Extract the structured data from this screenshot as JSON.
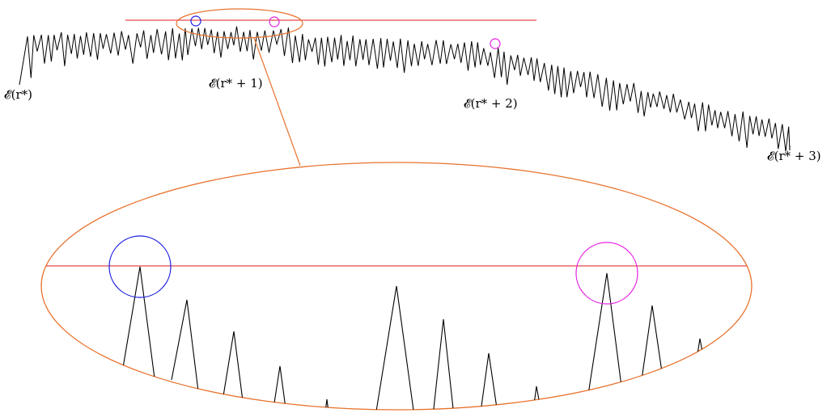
{
  "labels": {
    "e0": "𝓔(r*)",
    "e1": "𝓔(r* + 1)",
    "e2": "𝓔(r* + 2)",
    "e3": "𝓔(r* + 3)"
  },
  "colors": {
    "walk": "#000000",
    "threshold": "#e8474c",
    "zoom": "#e8732e",
    "circle_primary": "#1f1fe6",
    "circle_secondary": "#e620e0"
  }
}
